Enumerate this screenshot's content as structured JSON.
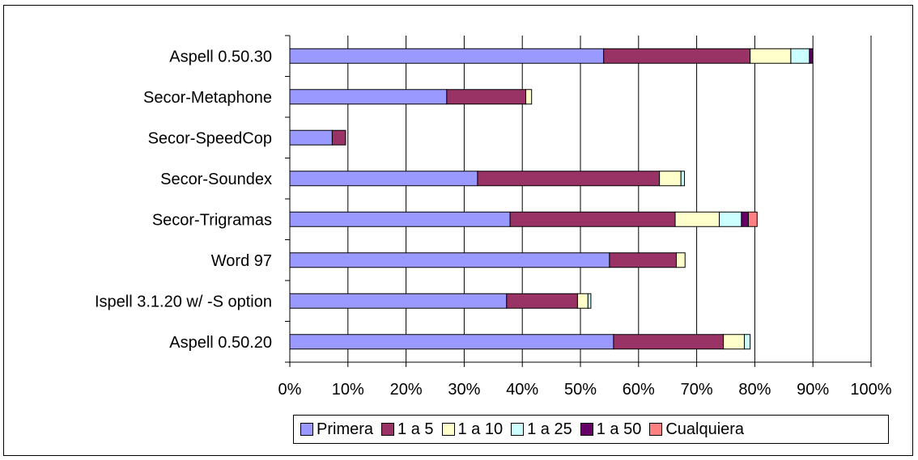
{
  "chart_data": {
    "type": "bar",
    "orientation": "horizontal",
    "stacked": true,
    "categories": [
      "Aspell 0.50.30",
      "Secor-Metaphone",
      "Secor-SpeedCop",
      "Secor-Soundex",
      "Secor-Trigramas",
      "Word 97",
      "Ispell 3.1.20 w/ -S option",
      "Aspell 0.50.20"
    ],
    "series": [
      {
        "name": "Primera",
        "color": "#9999ff",
        "values": [
          54.0,
          27.0,
          7.3,
          32.3,
          37.9,
          55.0,
          37.3,
          55.7
        ]
      },
      {
        "name": "1 a 5",
        "color": "#993366",
        "values": [
          25.2,
          13.6,
          2.3,
          31.3,
          28.4,
          11.5,
          12.2,
          18.9
        ]
      },
      {
        "name": "1 a 10",
        "color": "#ffffcc",
        "values": [
          7.0,
          1.0,
          0,
          3.7,
          7.6,
          1.5,
          1.8,
          3.6
        ]
      },
      {
        "name": "1 a 25",
        "color": "#ccffff",
        "values": [
          3.2,
          0,
          0,
          0.6,
          3.8,
          0,
          0.5,
          1.0
        ]
      },
      {
        "name": "1 a 50",
        "color": "#660066",
        "values": [
          0.5,
          0,
          0,
          0,
          1.2,
          0,
          0,
          0
        ]
      },
      {
        "name": "Cualquiera",
        "color": "#ff8080",
        "values": [
          0,
          0,
          0,
          0,
          1.5,
          0,
          0,
          0
        ]
      }
    ],
    "x_ticks": [
      "0%",
      "10%",
      "20%",
      "30%",
      "40%",
      "50%",
      "60%",
      "70%",
      "80%",
      "90%",
      "100%"
    ],
    "xlim": [
      0,
      100
    ],
    "grid": "vertical",
    "legend_position": "bottom"
  }
}
